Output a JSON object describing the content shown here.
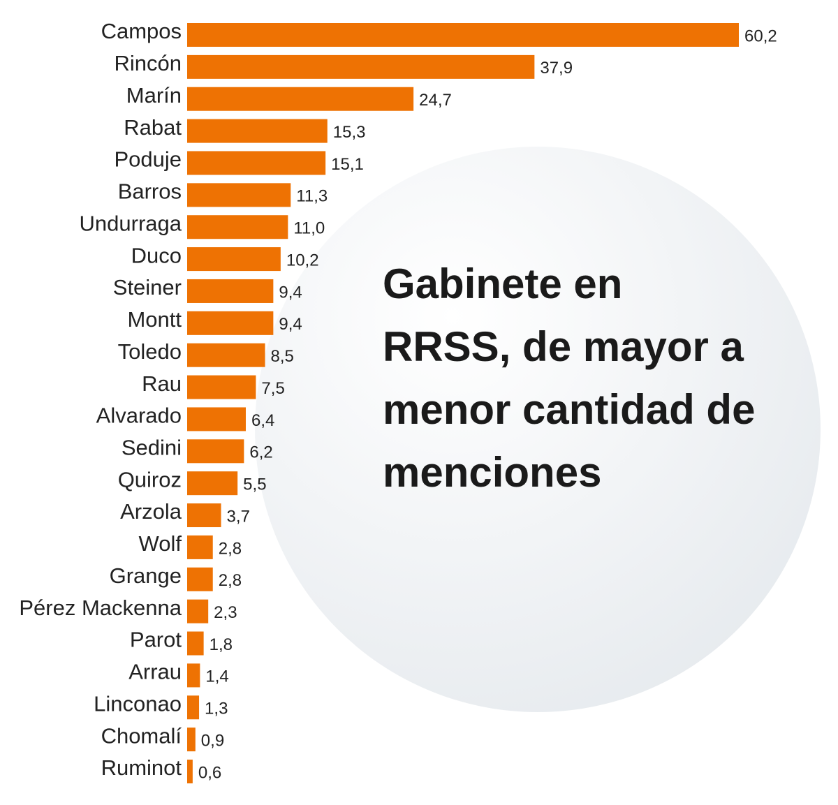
{
  "chart_data": {
    "type": "bar",
    "orientation": "horizontal",
    "title": "Gabinete en RRSS, de mayor a menor cantidad de menciones",
    "categories": [
      "Campos",
      "Rincón",
      "Marín",
      "Rabat",
      "Poduje",
      "Barros",
      "Undurraga",
      "Duco",
      "Steiner",
      "Montt",
      "Toledo",
      "Rau",
      "Alvarado",
      "Sedini",
      "Quiroz",
      "Arzola",
      "Wolf",
      "Grange",
      "Pérez Mackenna",
      "Parot",
      "Arrau",
      "Linconao",
      "Chomalí",
      "Ruminot"
    ],
    "values": [
      60.2,
      37.9,
      24.7,
      15.3,
      15.1,
      11.3,
      11.0,
      10.2,
      9.4,
      9.4,
      8.5,
      7.5,
      6.4,
      6.2,
      5.5,
      3.7,
      2.8,
      2.8,
      2.3,
      1.8,
      1.4,
      1.3,
      0.9,
      0.6
    ],
    "value_labels": [
      "60,2",
      "37,9",
      "24,7",
      "15,3",
      "15,1",
      "11,3",
      "11,0",
      "10,2",
      "9,4",
      "9,4",
      "8,5",
      "7,5",
      "6,4",
      "6,2",
      "5,5",
      "3,7",
      "2,8",
      "2,8",
      "2,3",
      "1,8",
      "1,4",
      "1,3",
      "0,9",
      "0,6"
    ],
    "color": "#ee7203"
  }
}
